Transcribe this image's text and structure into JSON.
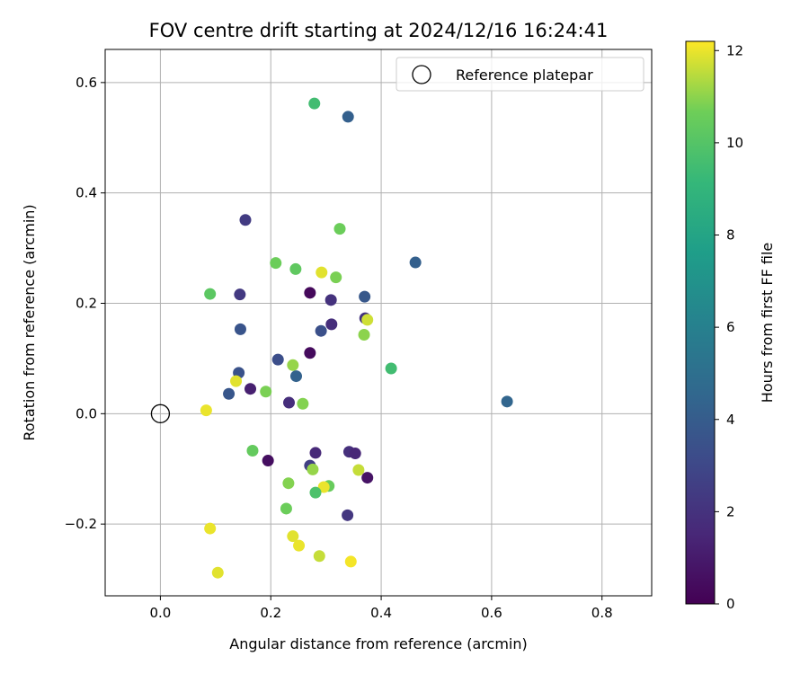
{
  "chart_data": {
    "type": "scatter",
    "title": "FOV centre drift starting at 2024/12/16 16:24:41",
    "xlabel": "Angular distance from reference (arcmin)",
    "ylabel": "Rotation from reference (arcmin)",
    "xlim": [
      -0.1,
      0.89
    ],
    "ylim": [
      -0.33,
      0.66
    ],
    "xticks": [
      0.0,
      0.2,
      0.4,
      0.6,
      0.8
    ],
    "xtick_labels": [
      "0.0",
      "0.2",
      "0.4",
      "0.6",
      "0.8"
    ],
    "yticks": [
      -0.2,
      0.0,
      0.2,
      0.4,
      0.6
    ],
    "ytick_labels": [
      "−0.2",
      "0.0",
      "0.2",
      "0.4",
      "0.6"
    ],
    "grid": true,
    "legend": {
      "position": "top-right",
      "label": "Reference platepar"
    },
    "reference": {
      "x": 0.0,
      "y": 0.0
    },
    "colorbar": {
      "label": "Hours from first FF file",
      "range": [
        0,
        12.2
      ],
      "ticks": [
        0,
        2,
        4,
        6,
        8,
        10,
        12
      ],
      "tick_labels": [
        "0",
        "2",
        "4",
        "6",
        "8",
        "10",
        "12"
      ],
      "colormap": "viridis"
    },
    "points": [
      {
        "x": 0.279,
        "y": 0.562,
        "h": 9.5
      },
      {
        "x": 0.34,
        "y": 0.538,
        "h": 4.2
      },
      {
        "x": 0.154,
        "y": 0.351,
        "h": 2.4
      },
      {
        "x": 0.325,
        "y": 0.335,
        "h": 10.6
      },
      {
        "x": 0.462,
        "y": 0.274,
        "h": 4.2
      },
      {
        "x": 0.209,
        "y": 0.273,
        "h": 10.6
      },
      {
        "x": 0.245,
        "y": 0.262,
        "h": 10.3
      },
      {
        "x": 0.292,
        "y": 0.256,
        "h": 11.9
      },
      {
        "x": 0.318,
        "y": 0.247,
        "h": 10.8
      },
      {
        "x": 0.271,
        "y": 0.219,
        "h": 0.3
      },
      {
        "x": 0.09,
        "y": 0.217,
        "h": 10.2
      },
      {
        "x": 0.144,
        "y": 0.216,
        "h": 2.3
      },
      {
        "x": 0.37,
        "y": 0.212,
        "h": 3.8
      },
      {
        "x": 0.309,
        "y": 0.206,
        "h": 2.0
      },
      {
        "x": 0.371,
        "y": 0.173,
        "h": 2.1
      },
      {
        "x": 0.375,
        "y": 0.17,
        "h": 11.7
      },
      {
        "x": 0.31,
        "y": 0.162,
        "h": 1.8
      },
      {
        "x": 0.145,
        "y": 0.153,
        "h": 3.6
      },
      {
        "x": 0.291,
        "y": 0.15,
        "h": 3.4
      },
      {
        "x": 0.369,
        "y": 0.143,
        "h": 11.0
      },
      {
        "x": 0.271,
        "y": 0.11,
        "h": 0.4
      },
      {
        "x": 0.213,
        "y": 0.098,
        "h": 3.3
      },
      {
        "x": 0.24,
        "y": 0.088,
        "h": 11.1
      },
      {
        "x": 0.418,
        "y": 0.082,
        "h": 9.5
      },
      {
        "x": 0.142,
        "y": 0.074,
        "h": 3.5
      },
      {
        "x": 0.246,
        "y": 0.068,
        "h": 4.3
      },
      {
        "x": 0.137,
        "y": 0.059,
        "h": 11.9
      },
      {
        "x": 0.163,
        "y": 0.045,
        "h": 1.2
      },
      {
        "x": 0.191,
        "y": 0.04,
        "h": 10.8
      },
      {
        "x": 0.124,
        "y": 0.036,
        "h": 3.7
      },
      {
        "x": 0.233,
        "y": 0.02,
        "h": 1.8
      },
      {
        "x": 0.258,
        "y": 0.018,
        "h": 10.9
      },
      {
        "x": 0.628,
        "y": 0.022,
        "h": 4.5
      },
      {
        "x": 0.083,
        "y": 0.006,
        "h": 12.0
      },
      {
        "x": 0.167,
        "y": -0.067,
        "h": 10.4
      },
      {
        "x": 0.342,
        "y": -0.069,
        "h": 1.9
      },
      {
        "x": 0.281,
        "y": -0.071,
        "h": 1.6
      },
      {
        "x": 0.353,
        "y": -0.072,
        "h": 1.5
      },
      {
        "x": 0.195,
        "y": -0.085,
        "h": 0.5
      },
      {
        "x": 0.271,
        "y": -0.094,
        "h": 2.6
      },
      {
        "x": 0.276,
        "y": -0.101,
        "h": 11.1
      },
      {
        "x": 0.359,
        "y": -0.102,
        "h": 11.6
      },
      {
        "x": 0.375,
        "y": -0.116,
        "h": 0.7
      },
      {
        "x": 0.232,
        "y": -0.126,
        "h": 10.9
      },
      {
        "x": 0.305,
        "y": -0.131,
        "h": 10.5
      },
      {
        "x": 0.296,
        "y": -0.133,
        "h": 12.0
      },
      {
        "x": 0.281,
        "y": -0.143,
        "h": 9.8
      },
      {
        "x": 0.228,
        "y": -0.172,
        "h": 10.6
      },
      {
        "x": 0.339,
        "y": -0.184,
        "h": 2.2
      },
      {
        "x": 0.09,
        "y": -0.208,
        "h": 12.0
      },
      {
        "x": 0.24,
        "y": -0.222,
        "h": 11.9
      },
      {
        "x": 0.251,
        "y": -0.239,
        "h": 12.0
      },
      {
        "x": 0.288,
        "y": -0.258,
        "h": 11.6
      },
      {
        "x": 0.345,
        "y": -0.268,
        "h": 12.1
      },
      {
        "x": 0.104,
        "y": -0.288,
        "h": 11.9
      }
    ]
  }
}
